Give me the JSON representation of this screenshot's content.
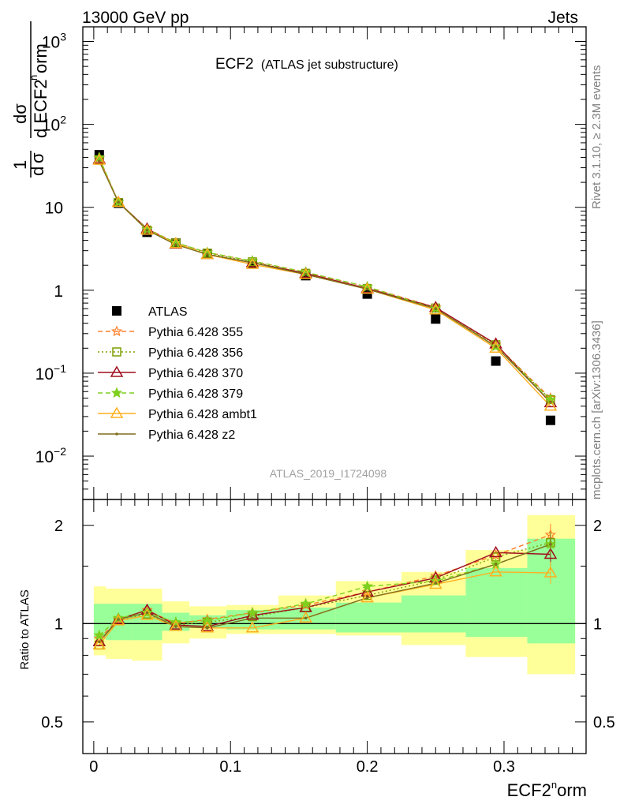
{
  "header": {
    "left": "13000 GeV pp",
    "right": "Jets"
  },
  "side_labels": {
    "rivet": "Rivet 3.1.10, ≥ 2.3M events",
    "mcplots": "mcplots.cern.ch [arXiv:1306.3436]"
  },
  "plot": {
    "title_main": "ECF2",
    "title_sub": "(ATLAS jet substructure)",
    "analysis_tag": "ATLAS_2019_I1724098"
  },
  "colors": {
    "ratio_band_outer": "#ffff99",
    "ratio_band_inner": "#99ff99",
    "data": "#000000"
  },
  "chart_data": [
    {
      "type": "scatter",
      "name": "main",
      "xlabel": "ECF2norm",
      "ylabel": "1/σ dσ/d ECF2norm",
      "yscale": "log",
      "xlim": [
        -0.008,
        0.36
      ],
      "ylim": [
        0.003,
        1500
      ],
      "yticks": [
        {
          "value": 0.01,
          "label": "10",
          "exp": "−2"
        },
        {
          "value": 0.1,
          "label": "10",
          "exp": "−1"
        },
        {
          "value": 1,
          "label": "1",
          "exp": ""
        },
        {
          "value": 10,
          "label": "10",
          "exp": ""
        },
        {
          "value": 100,
          "label": "10",
          "exp": "2"
        },
        {
          "value": 1000,
          "label": "10",
          "exp": "3"
        }
      ],
      "x": [
        0.004,
        0.018,
        0.039,
        0.06,
        0.083,
        0.116,
        0.155,
        0.2,
        0.25,
        0.294,
        0.334
      ],
      "series": [
        {
          "name": "ATLAS",
          "color": "#000000",
          "marker": "square",
          "line": "none",
          "values": [
            43,
            11.2,
            5.0,
            3.7,
            2.75,
            2.1,
            1.5,
            0.9,
            0.45,
            0.14,
            0.027
          ]
        },
        {
          "name": "Pythia 6.428 355",
          "color": "#ff7f27",
          "marker": "star",
          "line": "dashed",
          "values": [
            39,
            11.5,
            5.5,
            3.75,
            2.85,
            2.25,
            1.65,
            1.1,
            0.62,
            0.22,
            0.05
          ]
        },
        {
          "name": "Pythia 6.428 356",
          "color": "#7f9f00",
          "marker": "open-square",
          "line": "dotted",
          "values": [
            37,
            11.4,
            5.3,
            3.7,
            2.8,
            2.2,
            1.6,
            1.05,
            0.61,
            0.22,
            0.048
          ]
        },
        {
          "name": "Pythia 6.428 370",
          "color": "#9f0f1f",
          "marker": "open-triangle",
          "line": "solid",
          "values": [
            38,
            11.5,
            5.5,
            3.6,
            2.7,
            2.15,
            1.6,
            1.05,
            0.62,
            0.225,
            0.044
          ]
        },
        {
          "name": "Pythia 6.428 379",
          "color": "#7fcf1f",
          "marker": "star",
          "line": "dashed",
          "values": [
            40,
            11.5,
            5.4,
            3.75,
            2.85,
            2.25,
            1.65,
            1.1,
            0.6,
            0.21,
            0.048
          ]
        },
        {
          "name": "Pythia 6.428 ambt1",
          "color": "#ffaf1f",
          "marker": "open-triangle",
          "line": "solid",
          "values": [
            37,
            11.5,
            5.3,
            3.65,
            2.7,
            2.05,
            1.55,
            1.03,
            0.58,
            0.2,
            0.04
          ]
        },
        {
          "name": "Pythia 6.428 z2",
          "color": "#7f6f1f",
          "marker": "dot",
          "line": "solid",
          "values": [
            36,
            11.5,
            5.3,
            3.55,
            2.7,
            2.15,
            1.55,
            1.03,
            0.6,
            0.21,
            0.045
          ]
        }
      ]
    },
    {
      "type": "line",
      "name": "ratio",
      "xlabel": "ECF2norm",
      "ylabel": "Ratio to ATLAS",
      "yscale": "log",
      "xlim": [
        -0.008,
        0.36
      ],
      "ylim": [
        0.4,
        2.4
      ],
      "xticks": [
        {
          "value": 0,
          "label": "0"
        },
        {
          "value": 0.1,
          "label": "0.1"
        },
        {
          "value": 0.2,
          "label": "0.2"
        },
        {
          "value": 0.3,
          "label": "0.3"
        }
      ],
      "yticks": [
        {
          "value": 0.5,
          "label": "0.5"
        },
        {
          "value": 1,
          "label": "1"
        },
        {
          "value": 2,
          "label": "2"
        }
      ],
      "bins": [
        {
          "lo": 0.0,
          "hi": 0.009,
          "inner": [
            0.9,
            1.15
          ],
          "outer": [
            0.8,
            1.3
          ]
        },
        {
          "lo": 0.009,
          "hi": 0.028,
          "inner": [
            0.89,
            1.15
          ],
          "outer": [
            0.78,
            1.28
          ]
        },
        {
          "lo": 0.028,
          "hi": 0.05,
          "inner": [
            0.89,
            1.15
          ],
          "outer": [
            0.77,
            1.28
          ]
        },
        {
          "lo": 0.05,
          "hi": 0.07,
          "inner": [
            0.95,
            1.08
          ],
          "outer": [
            0.87,
            1.17
          ]
        },
        {
          "lo": 0.07,
          "hi": 0.097,
          "inner": [
            0.97,
            1.06
          ],
          "outer": [
            0.9,
            1.13
          ]
        },
        {
          "lo": 0.097,
          "hi": 0.135,
          "inner": [
            0.96,
            1.1
          ],
          "outer": [
            0.93,
            1.14
          ]
        },
        {
          "lo": 0.135,
          "hi": 0.177,
          "inner": [
            0.96,
            1.12
          ],
          "outer": [
            0.93,
            1.22
          ]
        },
        {
          "lo": 0.177,
          "hi": 0.225,
          "inner": [
            0.94,
            1.16
          ],
          "outer": [
            0.92,
            1.35
          ]
        },
        {
          "lo": 0.225,
          "hi": 0.272,
          "inner": [
            0.94,
            1.22
          ],
          "outer": [
            0.86,
            1.44
          ]
        },
        {
          "lo": 0.272,
          "hi": 0.317,
          "inner": [
            0.91,
            1.48
          ],
          "outer": [
            0.79,
            1.68
          ]
        },
        {
          "lo": 0.317,
          "hi": 0.352,
          "inner": [
            0.87,
            1.82
          ],
          "outer": [
            0.7,
            2.15
          ]
        }
      ],
      "x": [
        0.004,
        0.018,
        0.039,
        0.06,
        0.083,
        0.116,
        0.155,
        0.2,
        0.25,
        0.294,
        0.334
      ],
      "series": [
        {
          "name": "Pythia 6.428 355",
          "values": [
            0.9,
            1.03,
            1.1,
            1.0,
            1.03,
            1.08,
            1.14,
            1.25,
            1.4,
            1.62,
            1.87
          ]
        },
        {
          "name": "Pythia 6.428 356",
          "values": [
            0.86,
            1.02,
            1.07,
            0.99,
            1.01,
            1.05,
            1.12,
            1.22,
            1.36,
            1.6,
            1.77
          ]
        },
        {
          "name": "Pythia 6.428 370",
          "values": [
            0.88,
            1.03,
            1.1,
            0.99,
            0.98,
            1.06,
            1.12,
            1.25,
            1.38,
            1.65,
            1.63
          ]
        },
        {
          "name": "Pythia 6.428 379",
          "values": [
            0.92,
            1.04,
            1.08,
            1.01,
            1.02,
            1.08,
            1.15,
            1.3,
            1.35,
            1.52,
            1.75
          ]
        },
        {
          "name": "Pythia 6.428 ambt1",
          "values": [
            0.86,
            1.02,
            1.06,
            0.98,
            0.97,
            0.97,
            1.04,
            1.2,
            1.32,
            1.44,
            1.43
          ]
        },
        {
          "name": "Pythia 6.428 z2",
          "values": [
            0.88,
            1.03,
            1.08,
            0.98,
            0.97,
            1.04,
            1.04,
            1.2,
            1.33,
            1.52,
            1.75
          ]
        }
      ]
    }
  ]
}
